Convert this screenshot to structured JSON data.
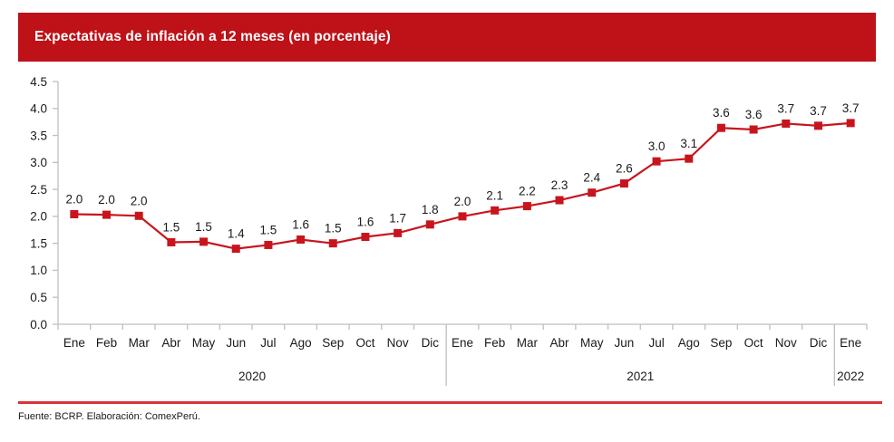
{
  "header": {
    "title": "Expectativas de inflación a 12 meses (en porcentaje)"
  },
  "colors": {
    "brand_red": "#BE1118",
    "line_red": "#C8151D",
    "rule_red": "#D8333C",
    "axis_gray": "#BFBFBF",
    "text_dark": "#1A1A1A"
  },
  "chart_data": {
    "type": "line",
    "title": "Expectativas de inflación a 12 meses (en porcentaje)",
    "ylabel": "",
    "xlabel": "",
    "ylim": [
      0.0,
      4.5
    ],
    "ytick_step": 0.5,
    "grid": false,
    "legend": false,
    "marker": "square",
    "line_color": "#C8151D",
    "groups": [
      {
        "year": "2020",
        "months": [
          "Ene",
          "Feb",
          "Mar",
          "Abr",
          "May",
          "Jun",
          "Jul",
          "Ago",
          "Sep",
          "Oct",
          "Nov",
          "Dic"
        ],
        "values": [
          2.0,
          2.0,
          2.0,
          1.5,
          1.5,
          1.4,
          1.5,
          1.6,
          1.5,
          1.6,
          1.7,
          1.8
        ]
      },
      {
        "year": "2021",
        "months": [
          "Ene",
          "Feb",
          "Mar",
          "Abr",
          "May",
          "Jun",
          "Jul",
          "Ago",
          "Sep",
          "Oct",
          "Nov",
          "Dic"
        ],
        "values": [
          2.0,
          2.1,
          2.2,
          2.3,
          2.4,
          2.6,
          3.0,
          3.1,
          3.6,
          3.6,
          3.7,
          3.7
        ]
      },
      {
        "year": "2022",
        "months": [
          "Ene"
        ],
        "values": [
          3.7
        ]
      }
    ],
    "plot_values": [
      2.04,
      2.03,
      2.01,
      1.52,
      1.53,
      1.4,
      1.47,
      1.57,
      1.5,
      1.62,
      1.69,
      1.85,
      2.0,
      2.11,
      2.19,
      2.3,
      2.44,
      2.61,
      3.02,
      3.07,
      3.64,
      3.61,
      3.72,
      3.68,
      3.73
    ]
  },
  "footer": {
    "source": "Fuente: BCRP. Elaboración: ComexPerú."
  }
}
